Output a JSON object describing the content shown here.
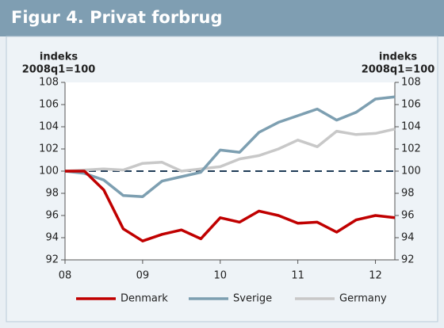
{
  "chart_data": {
    "type": "line",
    "title": "Figur 4. Privat forbrug",
    "y_label": [
      "indeks",
      "2008q1=100"
    ],
    "y2_label": [
      "indeks",
      "2008q1=100"
    ],
    "x": [
      2008,
      2008.25,
      2008.5,
      2008.75,
      2009,
      2009.25,
      2009.5,
      2009.75,
      2010,
      2010.25,
      2010.5,
      2010.75,
      2011,
      2011.25,
      2011.5,
      2011.75,
      2012,
      2012.25
    ],
    "xlim": [
      2008,
      2012.25
    ],
    "xticks": [
      {
        "value": 2008,
        "label": "08"
      },
      {
        "value": 2009,
        "label": "09"
      },
      {
        "value": 2010,
        "label": "10"
      },
      {
        "value": 2011,
        "label": "11"
      },
      {
        "value": 2012,
        "label": "12"
      }
    ],
    "ylim": [
      92,
      108
    ],
    "yticks": [
      92,
      94,
      96,
      98,
      100,
      102,
      104,
      106,
      108
    ],
    "y2lim": [
      92,
      108
    ],
    "y2ticks": [
      92,
      94,
      96,
      98,
      100,
      102,
      104,
      106,
      108
    ],
    "reference_line": 100,
    "series": [
      {
        "name": "Denmark",
        "color": "#c00000",
        "values": [
          100,
          100,
          98.3,
          94.8,
          93.7,
          94.3,
          94.7,
          93.9,
          95.8,
          95.4,
          96.4,
          96.0,
          95.3,
          95.4,
          94.5,
          95.6,
          96.0,
          95.8
        ]
      },
      {
        "name": "Sverige",
        "color": "#7d9fb1",
        "values": [
          100,
          99.8,
          99.2,
          97.8,
          97.7,
          99.1,
          99.5,
          99.9,
          101.9,
          101.7,
          103.5,
          104.4,
          105.0,
          105.6,
          104.6,
          105.3,
          106.5,
          106.7
        ]
      },
      {
        "name": "Germany",
        "color": "#c8c8c8",
        "values": [
          100,
          100.1,
          100.2,
          100.1,
          100.7,
          100.8,
          100.0,
          100.2,
          100.4,
          101.1,
          101.4,
          102.0,
          102.8,
          102.2,
          103.6,
          103.3,
          103.4,
          103.8
        ]
      }
    ]
  }
}
